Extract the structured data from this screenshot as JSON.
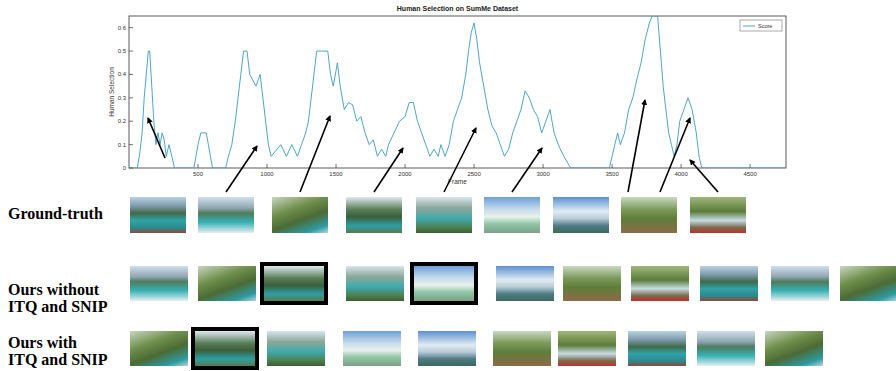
{
  "chart_data": {
    "type": "line",
    "title": "Human Selection on SumMe Dataset",
    "x_label": "Frame",
    "y_label": "Human Selection",
    "x": [
      0,
      60,
      75,
      95,
      110,
      125,
      140,
      150,
      165,
      180,
      195,
      210,
      225,
      240,
      255,
      270,
      290,
      310,
      330,
      470,
      485,
      500,
      520,
      560,
      575,
      590,
      605,
      700,
      720,
      745,
      770,
      790,
      810,
      830,
      855,
      875,
      920,
      950,
      970,
      990,
      1010,
      1030,
      1100,
      1140,
      1180,
      1220,
      1250,
      1280,
      1300,
      1320,
      1340,
      1360,
      1440,
      1460,
      1480,
      1510,
      1530,
      1560,
      1590,
      1620,
      1650,
      1680,
      1710,
      1740,
      1770,
      1800,
      1830,
      1860,
      1880,
      1920,
      1960,
      2000,
      2030,
      2060,
      2090,
      2120,
      2150,
      2180,
      2210,
      2240,
      2260,
      2290,
      2320,
      2350,
      2380,
      2410,
      2440,
      2460,
      2480,
      2500,
      2520,
      2540,
      2570,
      2600,
      2630,
      2660,
      2690,
      2720,
      2750,
      2780,
      2810,
      2840,
      2870,
      2900,
      2930,
      2960,
      2990,
      3020,
      3050,
      3080,
      3110,
      3150,
      3200,
      3480,
      3500,
      3520,
      3540,
      3560,
      3590,
      3620,
      3650,
      3680,
      3710,
      3740,
      3770,
      3790,
      3830,
      3850,
      3870,
      3890,
      3910,
      3930,
      3950,
      3970,
      3990,
      4020,
      4050,
      4080,
      4110,
      4130,
      4150,
      4760
    ],
    "series": [
      {
        "name": "Score",
        "color": "#3a9bbf",
        "line_style": "solid",
        "values": [
          0,
          0,
          0.05,
          0.15,
          0.3,
          0.4,
          0.5,
          0.5,
          0.35,
          0.2,
          0.1,
          0.15,
          0.1,
          0.15,
          0.12,
          0.05,
          0.1,
          0.05,
          0,
          0,
          0.05,
          0.1,
          0.15,
          0.15,
          0.1,
          0.05,
          0,
          0,
          0.05,
          0.1,
          0.2,
          0.3,
          0.4,
          0.5,
          0.5,
          0.4,
          0.35,
          0.4,
          0.3,
          0.2,
          0.1,
          0.05,
          0.1,
          0.05,
          0.1,
          0.05,
          0.1,
          0.15,
          0.2,
          0.3,
          0.4,
          0.5,
          0.5,
          0.4,
          0.35,
          0.45,
          0.35,
          0.25,
          0.28,
          0.27,
          0.2,
          0.22,
          0.15,
          0.1,
          0.12,
          0.05,
          0.08,
          0.05,
          0.1,
          0.15,
          0.2,
          0.22,
          0.28,
          0.28,
          0.2,
          0.15,
          0.1,
          0.05,
          0.08,
          0.05,
          0.1,
          0.05,
          0.1,
          0.2,
          0.25,
          0.3,
          0.4,
          0.5,
          0.58,
          0.62,
          0.55,
          0.45,
          0.35,
          0.25,
          0.18,
          0.15,
          0.1,
          0.05,
          0.08,
          0.15,
          0.2,
          0.25,
          0.33,
          0.3,
          0.25,
          0.22,
          0.15,
          0.2,
          0.25,
          0.15,
          0.1,
          0.05,
          0,
          0,
          0.05,
          0.1,
          0.15,
          0.1,
          0.15,
          0.25,
          0.3,
          0.38,
          0.45,
          0.55,
          0.62,
          0.65,
          0.65,
          0.5,
          0.35,
          0.25,
          0.15,
          0.1,
          0.05,
          0.1,
          0.2,
          0.25,
          0.3,
          0.25,
          0.15,
          0.05,
          0,
          0
        ]
      }
    ],
    "xlim": [
      0,
      4760
    ],
    "ylim": [
      0,
      0.65
    ],
    "xticks": [
      500,
      1000,
      1500,
      2000,
      2500,
      3000,
      3500,
      4000,
      4500
    ],
    "yticks": [
      0,
      0.1,
      0.2,
      0.3,
      0.4,
      0.5,
      0.6
    ],
    "grid": false,
    "legend": "upper right"
  },
  "figure": {
    "rows": [
      {
        "label_lines": [
          "Ground-truth"
        ],
        "thumbnails": 9,
        "highlighted": []
      },
      {
        "label_lines": [
          "Ours without",
          "ITQ and SNIP"
        ],
        "thumbnails": 11,
        "highlighted": [
          2,
          4
        ]
      },
      {
        "label_lines": [
          "Ours with",
          "ITQ and SNIP"
        ],
        "thumbnails": 10,
        "highlighted": [
          1
        ]
      }
    ]
  }
}
